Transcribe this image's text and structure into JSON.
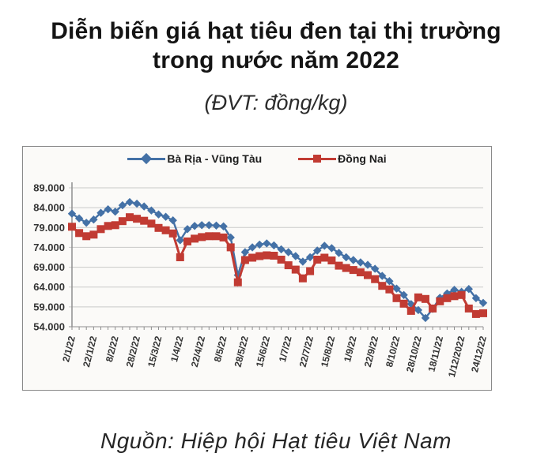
{
  "page": {
    "title": "Diễn biến giá hạt tiêu đen tại thị trường trong nước năm 2022",
    "subtitle": "(ĐVT: đồng/kg)",
    "source": "Nguồn: Hiệp hội Hạt tiêu Việt Nam"
  },
  "chart_data": {
    "type": "line",
    "title": "Diễn biến giá hạt tiêu đen tại thị trường trong nước năm 2022",
    "unit_label": "(ĐVT: đồng/kg)",
    "grid": true,
    "legend_position": "top",
    "ylim": [
      54000,
      89000
    ],
    "y_ticks": [
      {
        "value": 54000,
        "label": "54.000"
      },
      {
        "value": 59000,
        "label": "59.000"
      },
      {
        "value": 64000,
        "label": "64.000"
      },
      {
        "value": 69000,
        "label": "69.000"
      },
      {
        "value": 74000,
        "label": "74.000"
      },
      {
        "value": 79000,
        "label": "79.000"
      },
      {
        "value": 84000,
        "label": "84.000"
      },
      {
        "value": 89000,
        "label": "89.000"
      }
    ],
    "x_labels": [
      "2/1/22",
      "22/1/22",
      "8/2/22",
      "28/2/22",
      "15/3/22",
      "1/4/22",
      "22/4/22",
      "8/5/22",
      "28/5/22",
      "15/6/22",
      "1/7/22",
      "22/7/22",
      "15/8/22",
      "1/9/22",
      "22/9/22",
      "8/10/22",
      "28/10/22",
      "18/11/22",
      "1/12/2022",
      "24/12/22"
    ],
    "x_label_every": 3,
    "series": [
      {
        "name": "Bà Rịa - Vũng Tàu",
        "color": "#4471a6",
        "marker": "diamond",
        "values": [
          82500,
          81300,
          80200,
          81000,
          82700,
          83600,
          83000,
          84600,
          85400,
          85000,
          84300,
          83300,
          82300,
          81700,
          80800,
          75800,
          78600,
          79400,
          79600,
          79600,
          79500,
          79300,
          76500,
          67000,
          72800,
          74000,
          74700,
          75000,
          74500,
          73500,
          72800,
          71800,
          70400,
          71500,
          73200,
          74400,
          73800,
          72600,
          71500,
          70800,
          70200,
          69600,
          68600,
          66800,
          65500,
          63600,
          62000,
          59700,
          58200,
          56200,
          58500,
          61300,
          62400,
          63300,
          62800,
          63500,
          61200,
          60000
        ]
      },
      {
        "name": "Đồng Nai",
        "color": "#c13b33",
        "marker": "square",
        "values": [
          79200,
          77600,
          76800,
          77200,
          78600,
          79400,
          79600,
          80600,
          81600,
          81200,
          80700,
          80000,
          78900,
          78300,
          77500,
          71500,
          75500,
          76200,
          76600,
          76800,
          76800,
          76500,
          74000,
          65200,
          70800,
          71400,
          71800,
          72000,
          71900,
          70900,
          69500,
          68400,
          66200,
          68000,
          70900,
          71400,
          70700,
          69400,
          68800,
          68300,
          67700,
          67000,
          66000,
          64300,
          63400,
          61200,
          59800,
          58000,
          61400,
          61000,
          58600,
          60400,
          61200,
          61700,
          62000,
          58600,
          57200,
          57400
        ]
      }
    ]
  }
}
